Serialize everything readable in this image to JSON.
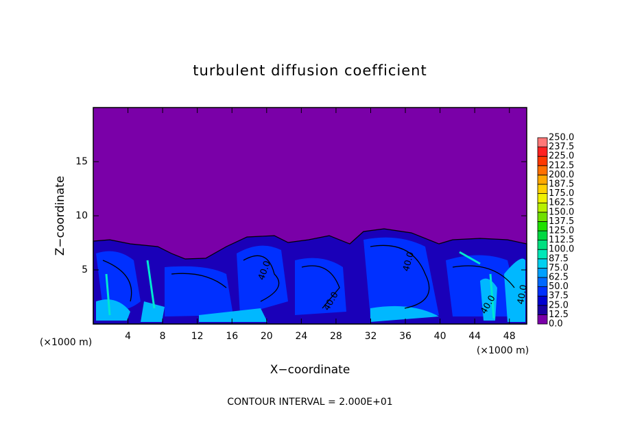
{
  "chart_data": {
    "type": "contour",
    "title": "turbulent diffusion coefficient",
    "xlabel": "X−coordinate",
    "ylabel": "Z−coordinate",
    "x_unit_left": "(×1000 m)",
    "x_unit_right": "(×1000 m)",
    "footer": "CONTOUR INTERVAL = 2.000E+01",
    "xlim": [
      0,
      50
    ],
    "ylim": [
      0,
      20
    ],
    "xticks": [
      4,
      8,
      12,
      16,
      20,
      24,
      28,
      32,
      36,
      40,
      44,
      48
    ],
    "yticks": [
      5,
      10,
      15
    ],
    "contour_labels": [
      "40.0",
      "40.0",
      "40.0",
      "40.0",
      "40.0"
    ],
    "colorbar": {
      "levels": [
        {
          "value": 0,
          "label": "0.0"
        },
        {
          "value": 12.5,
          "label": "12.5"
        },
        {
          "value": 25,
          "label": "25.0"
        },
        {
          "value": 37.5,
          "label": "37.5"
        },
        {
          "value": 50,
          "label": "50.0"
        },
        {
          "value": 62.5,
          "label": "62.5"
        },
        {
          "value": 75,
          "label": "75.0"
        },
        {
          "value": 87.5,
          "label": "87.5"
        },
        {
          "value": 100,
          "label": "100.0"
        },
        {
          "value": 112.5,
          "label": "112.5"
        },
        {
          "value": 125,
          "label": "125.0"
        },
        {
          "value": 137.5,
          "label": "137.5"
        },
        {
          "value": 150,
          "label": "150.0"
        },
        {
          "value": 162.5,
          "label": "162.5"
        },
        {
          "value": 175,
          "label": "175.0"
        },
        {
          "value": 187.5,
          "label": "187.5"
        },
        {
          "value": 200,
          "label": "200.0"
        },
        {
          "value": 212.5,
          "label": "212.5"
        },
        {
          "value": 225,
          "label": "225.0"
        },
        {
          "value": 237.5,
          "label": "237.5"
        },
        {
          "value": 250,
          "label": "250.0"
        }
      ],
      "colors": [
        "#7a00a8",
        "#1a00a0",
        "#0000d0",
        "#0030ff",
        "#0068ff",
        "#00a0ff",
        "#00d0f0",
        "#00e8b8",
        "#00e080",
        "#00d840",
        "#20e000",
        "#70e000",
        "#b8f000",
        "#f0f000",
        "#ffd000",
        "#ffa800",
        "#ff7000",
        "#ff3800",
        "#ff2020",
        "#ff7878"
      ]
    }
  }
}
